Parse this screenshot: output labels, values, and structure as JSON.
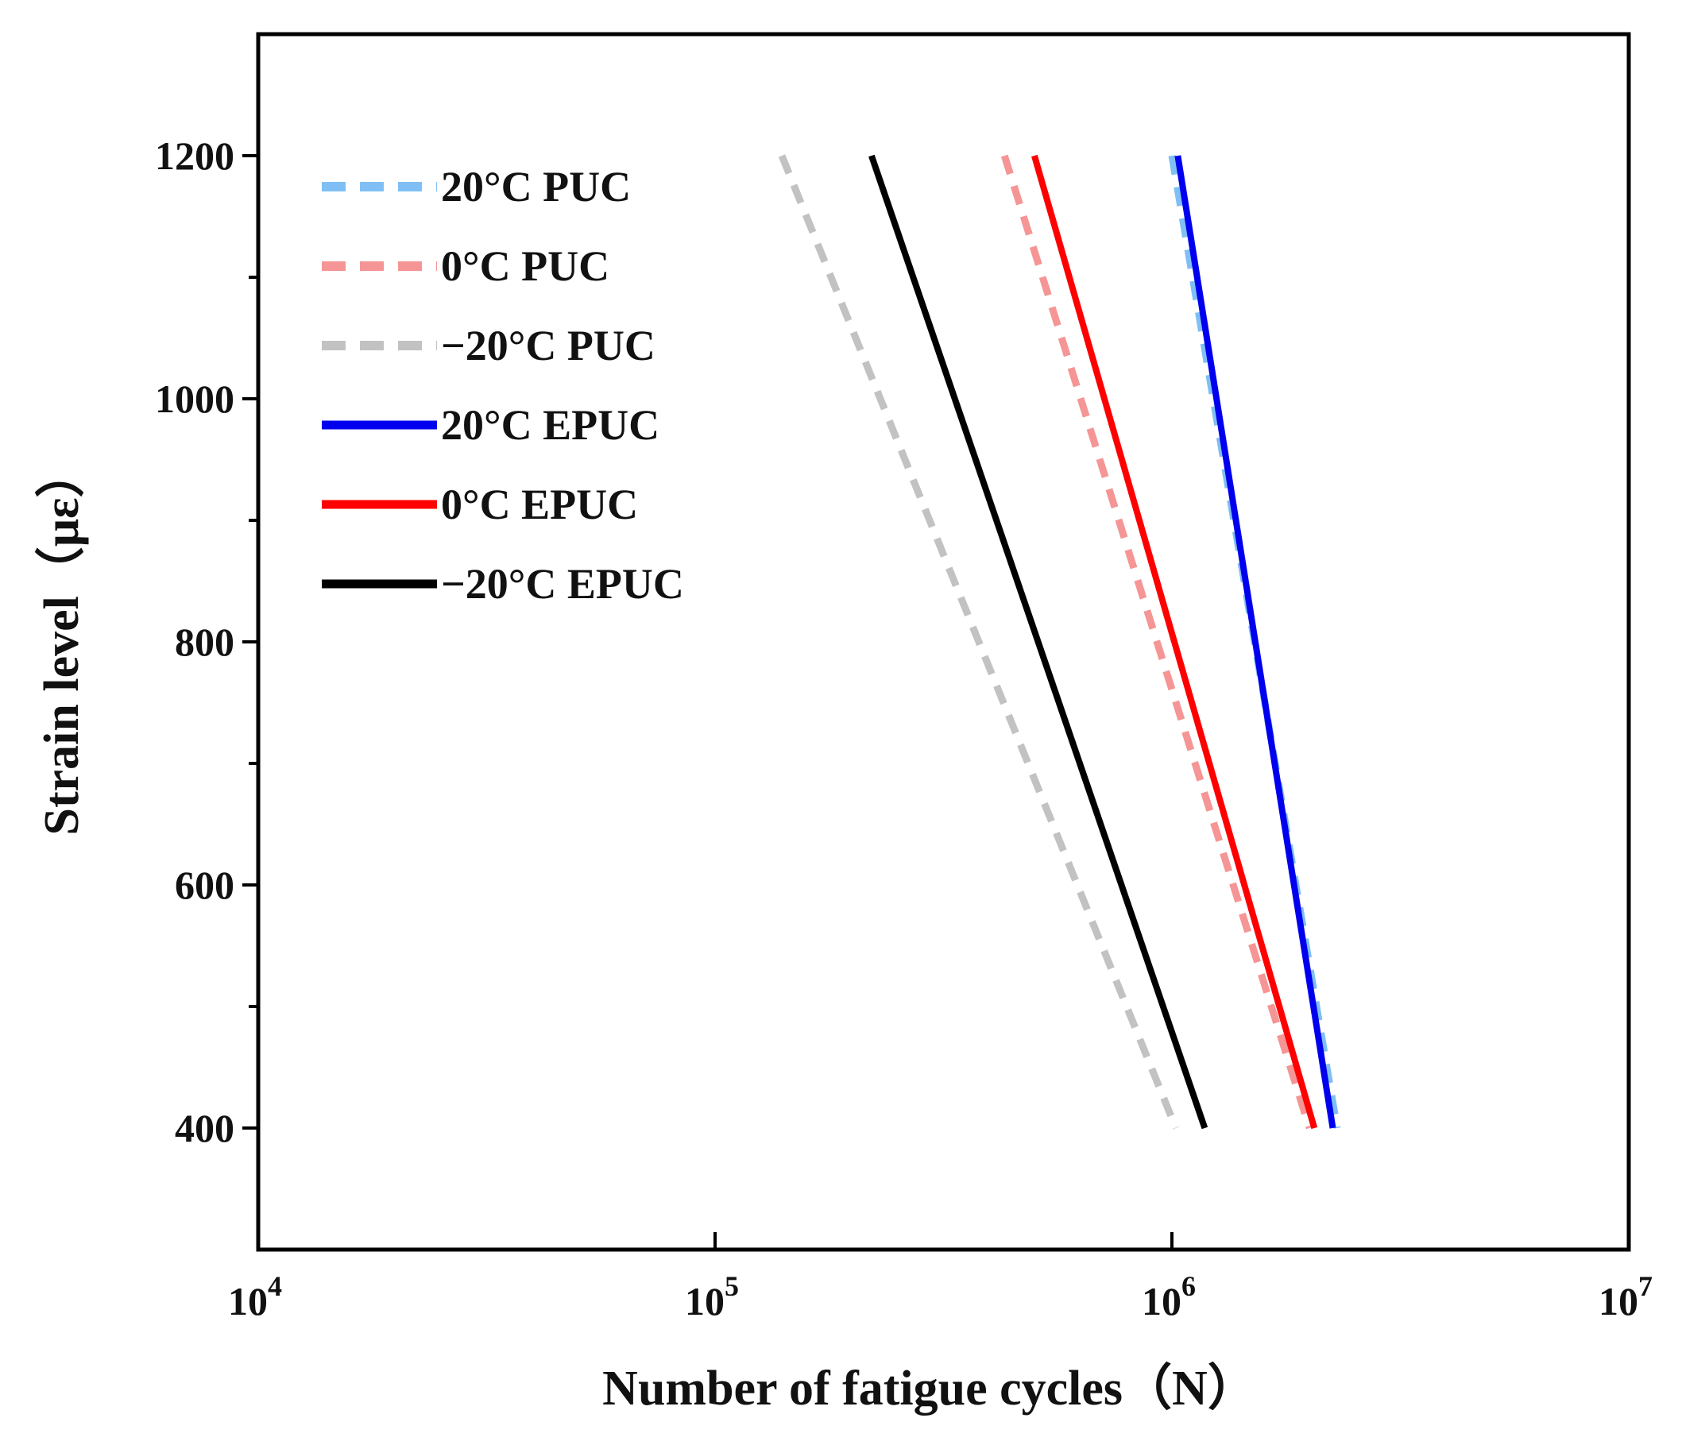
{
  "chart_data": {
    "type": "line",
    "title": "",
    "xlabel": "Number of fatigue cycles（N）",
    "ylabel": "Strain level（με）",
    "xscale": "log",
    "xlim": [
      10000,
      10000000
    ],
    "ylim": [
      300,
      1300
    ],
    "x_ticks": [
      {
        "value": 10000,
        "base": "10",
        "exp": "4"
      },
      {
        "value": 100000,
        "base": "10",
        "exp": "5"
      },
      {
        "value": 1000000,
        "base": "10",
        "exp": "6"
      },
      {
        "value": 10000000,
        "base": "10",
        "exp": "7"
      }
    ],
    "y_ticks": [
      400,
      600,
      800,
      1000,
      1200
    ],
    "y_minor_ticks": [
      500,
      700,
      900,
      1100
    ],
    "legend_position": "top-left",
    "series": [
      {
        "name": "20°C PUC",
        "style": "dashed",
        "color": "#7fbff5",
        "x": [
          1000000,
          2300000
        ],
        "y": [
          1200,
          400
        ]
      },
      {
        "name": "0°C   PUC",
        "style": "dashed",
        "color": "#f59595",
        "x": [
          430000,
          2000000
        ],
        "y": [
          1200,
          400
        ]
      },
      {
        "name": "−20°C PUC",
        "style": "dashed",
        "color": "#c2c2c2",
        "x": [
          140000,
          1020000
        ],
        "y": [
          1200,
          400
        ]
      },
      {
        "name": "20°C EPUC",
        "style": "solid",
        "color": "#0000ee",
        "x": [
          1030000,
          2250000
        ],
        "y": [
          1200,
          400
        ]
      },
      {
        "name": "0°C   EPUC",
        "style": "solid",
        "color": "#ff0000",
        "x": [
          500000,
          2050000
        ],
        "y": [
          1200,
          400
        ]
      },
      {
        "name": "−20°C EPUC",
        "style": "solid",
        "color": "#000000",
        "x": [
          220000,
          1180000
        ],
        "y": [
          1200,
          400
        ]
      }
    ]
  }
}
